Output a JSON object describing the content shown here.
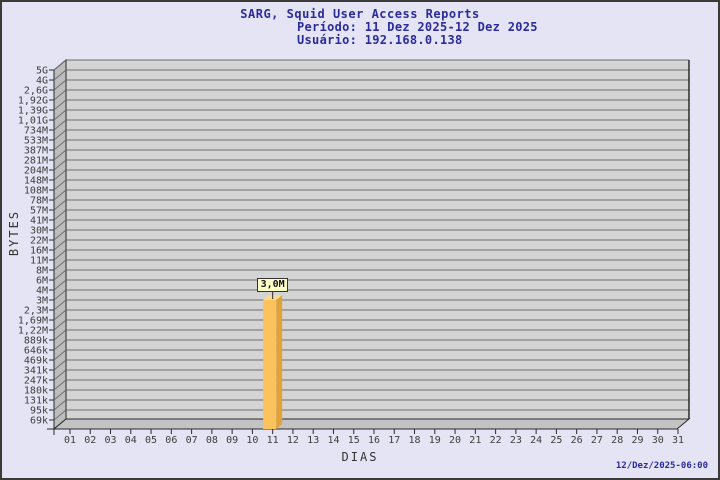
{
  "colors": {
    "page_bg": "#e4e4f4",
    "page_border": "#3a3a3a",
    "title_text": "#2b2b9c",
    "plot_bg": "#d4d4d4",
    "gridline": "#6e6e6e",
    "wall_fill": "#bdbdbd",
    "floor_fill": "#c3c3c3",
    "axis_line": "#2a2a2a",
    "tick_text": "#3d3d3d",
    "bar_front": "#fcc25d",
    "bar_side": "#e0a23e",
    "bar_top": "#fdd992",
    "annotation_bg": "#ffffc8",
    "annotation_border": "#333333"
  },
  "footer": {
    "generated": "12/Dez/2025-06:00"
  },
  "chart_data": {
    "type": "bar",
    "title": "SARG, Squid User Access Reports",
    "period": "Período: 11 Dez 2025-12 Dez 2025",
    "user": "Usuário: 192.168.0.138",
    "xlabel": "DIAS",
    "ylabel": "BYTES",
    "x_tick_labels": [
      "01",
      "02",
      "03",
      "04",
      "05",
      "06",
      "07",
      "08",
      "09",
      "10",
      "11",
      "12",
      "13",
      "14",
      "15",
      "16",
      "17",
      "18",
      "19",
      "20",
      "21",
      "22",
      "23",
      "24",
      "25",
      "26",
      "27",
      "28",
      "29",
      "30",
      "31"
    ],
    "y_tick_labels": [
      "5G",
      "4G",
      "2,6G",
      "1,92G",
      "1,39G",
      "1,01G",
      "734M",
      "533M",
      "387M",
      "281M",
      "204M",
      "148M",
      "108M",
      "78M",
      "57M",
      "41M",
      "30M",
      "22M",
      "16M",
      "11M",
      "8M",
      "6M",
      "4M",
      "3M",
      "2,3M",
      "1,69M",
      "1,22M",
      "889k",
      "646k",
      "469k",
      "341k",
      "247k",
      "180k",
      "131k",
      "95k",
      "69k"
    ],
    "bars": [
      {
        "x": "11",
        "label": "3,0M",
        "top_at_y_tick": "3M",
        "value_bytes_approx": 3000000
      }
    ],
    "legend": null,
    "grid": "horizontal-only",
    "style": "3d-bar"
  }
}
